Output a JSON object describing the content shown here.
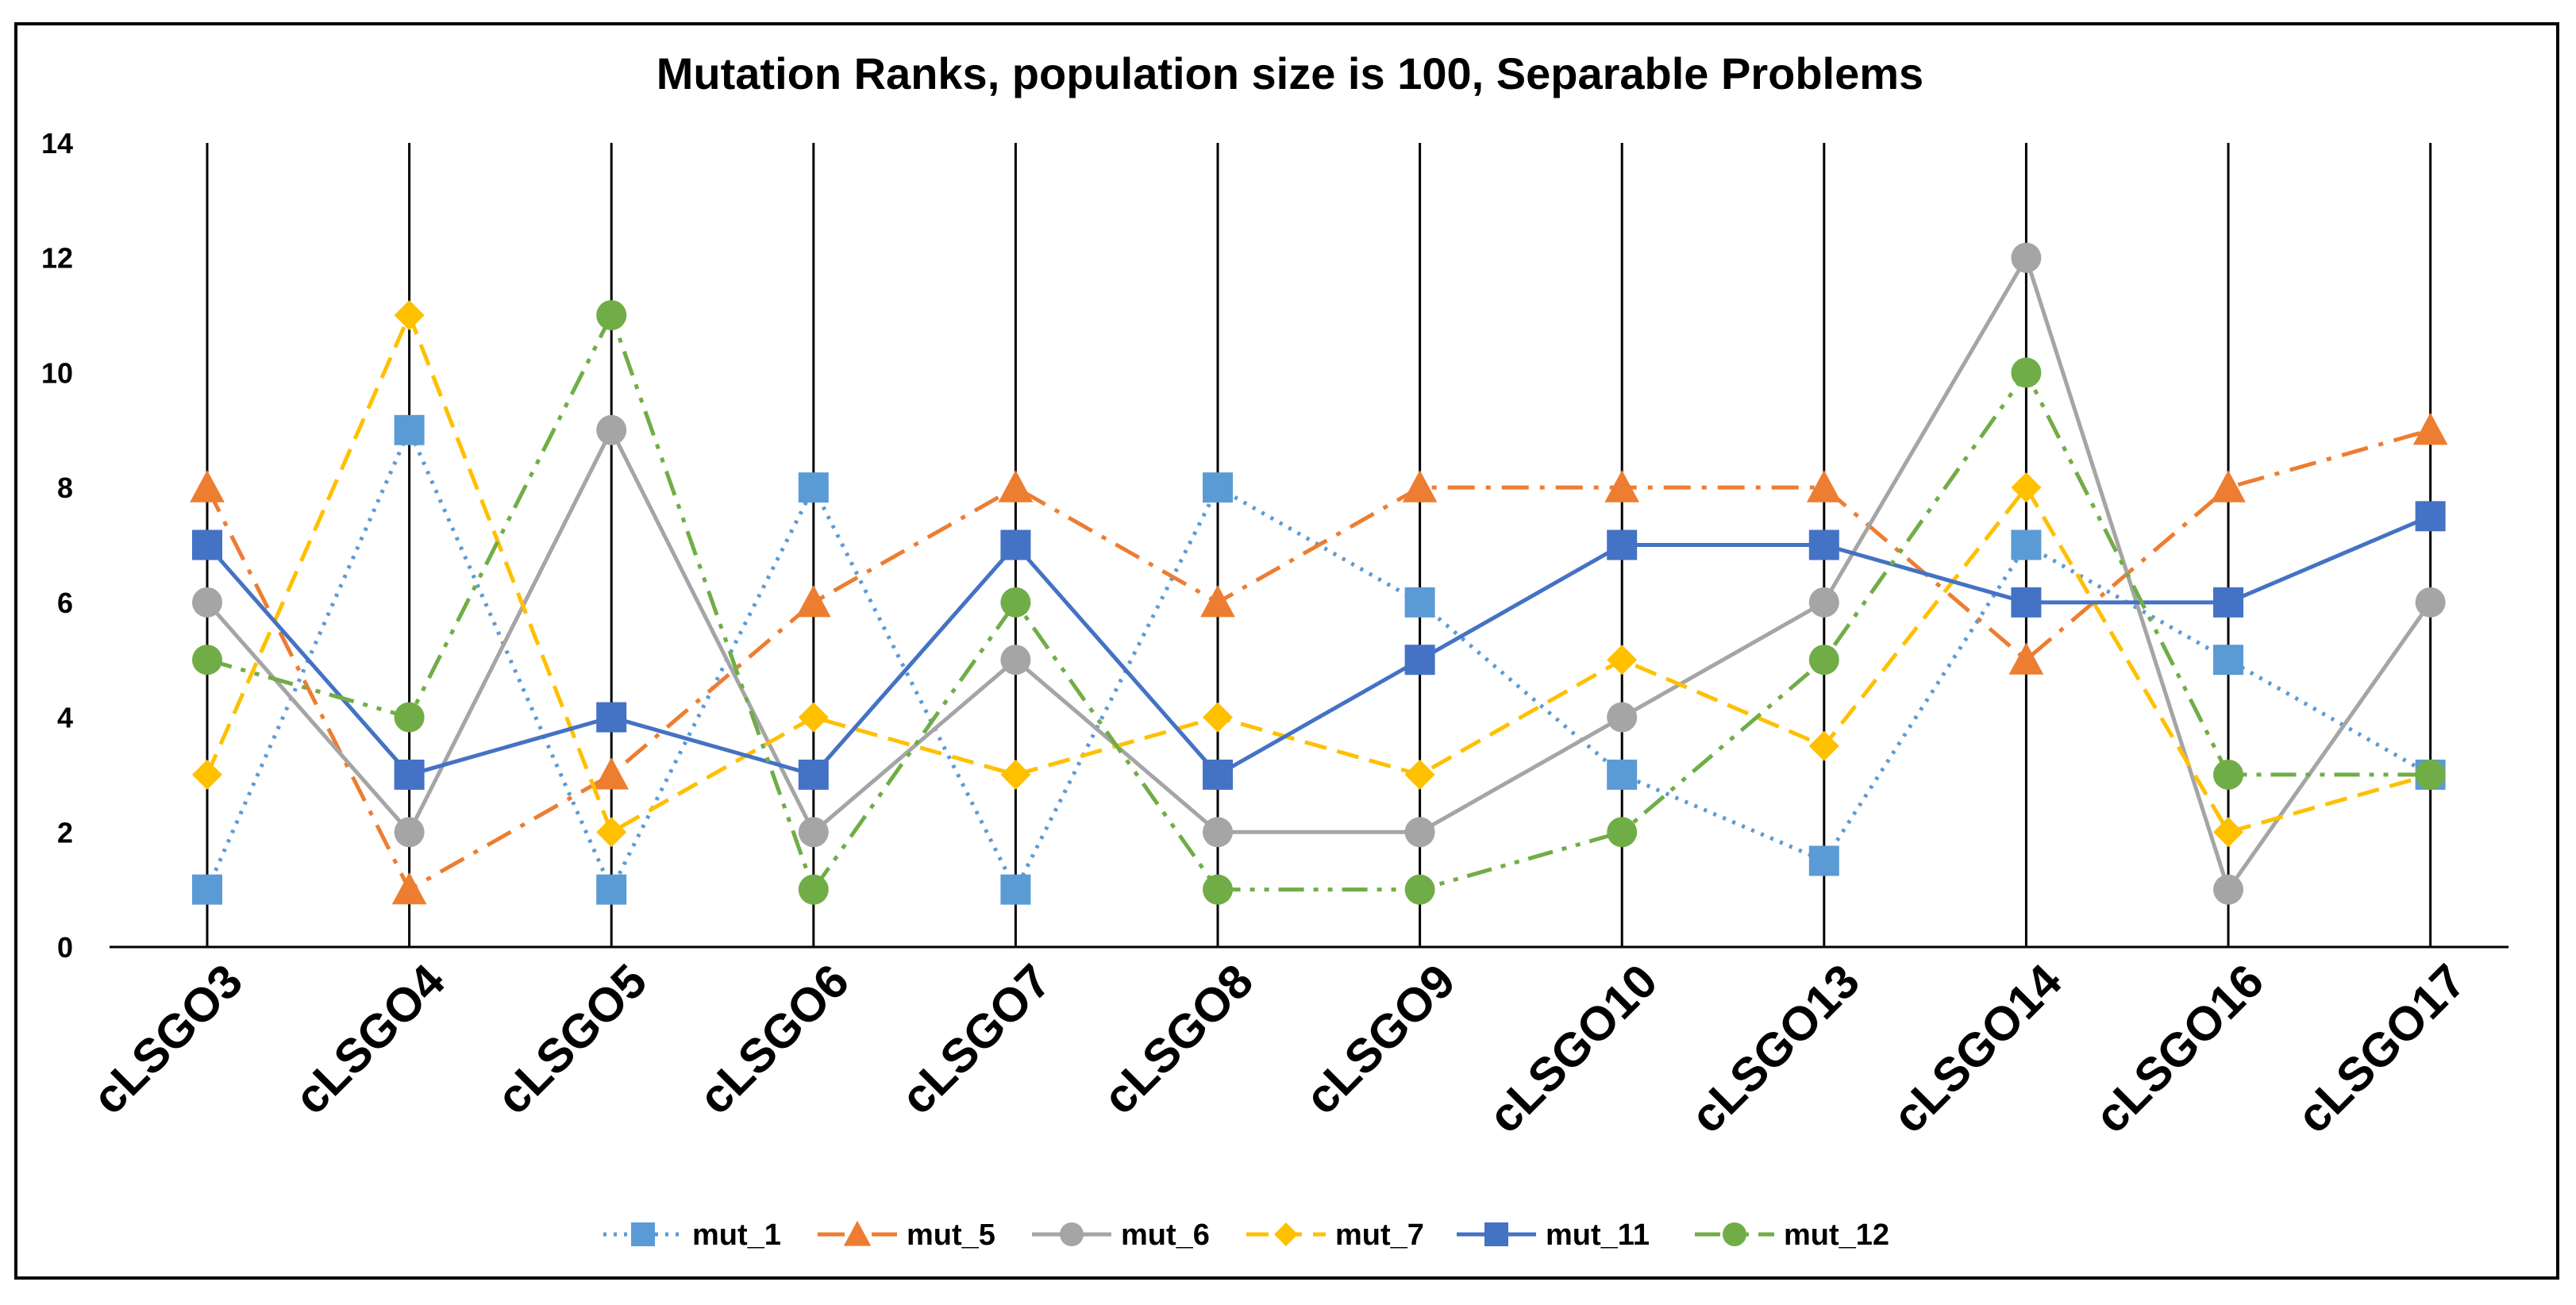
{
  "chart_data": {
    "type": "line",
    "title": "Mutation Ranks, population size is 100, Separable Problems",
    "xlabel": "",
    "ylabel": "",
    "ylim": [
      0,
      14
    ],
    "yticks": [
      0,
      2,
      4,
      6,
      8,
      10,
      12,
      14
    ],
    "ytick_labels": [
      "0",
      "2",
      "4",
      "6",
      "8",
      "10",
      "12",
      "14"
    ],
    "grid": "vertical lines at each category",
    "legend_position": "bottom",
    "categories": [
      "cLSGO3",
      "cLSGO4",
      "cLSGO5",
      "cLSGO6",
      "cLSGO7",
      "cLSGO8",
      "cLSGO9",
      "cLSGO10",
      "cLSGO13",
      "cLSGO14",
      "cLSGO16",
      "cLSGO17"
    ],
    "series": [
      {
        "name": "mut_1",
        "color": "#5B9BD5",
        "line_style": "dotted",
        "marker": "square",
        "values": [
          1,
          9,
          1,
          8,
          1,
          8,
          6,
          3,
          1.5,
          7,
          5,
          3
        ]
      },
      {
        "name": "mut_5",
        "color": "#ED7D31",
        "line_style": "dash-dot",
        "marker": "triangle",
        "values": [
          8,
          1,
          3,
          6,
          8,
          6,
          8,
          8,
          8,
          5,
          8,
          9
        ]
      },
      {
        "name": "mut_6",
        "color": "#A5A5A5",
        "line_style": "solid",
        "marker": "circle",
        "values": [
          6,
          2,
          9,
          2,
          5,
          2,
          2,
          4,
          6,
          12,
          1,
          6
        ]
      },
      {
        "name": "mut_7",
        "color": "#FFC000",
        "line_style": "dashed",
        "marker": "diamond",
        "values": [
          3,
          11,
          2,
          4,
          3,
          4,
          3,
          5,
          3.5,
          8,
          2,
          3
        ]
      },
      {
        "name": "mut_11",
        "color": "#4472C4",
        "line_style": "solid",
        "marker": "square",
        "values": [
          7,
          3,
          4,
          3,
          7,
          3,
          5,
          7,
          7,
          6,
          6,
          7.5
        ]
      },
      {
        "name": "mut_12",
        "color": "#70AD47",
        "line_style": "dash-dot-dot",
        "marker": "circle",
        "values": [
          5,
          4,
          11,
          1,
          6,
          1,
          1,
          2,
          5,
          10,
          3,
          3
        ]
      }
    ]
  }
}
